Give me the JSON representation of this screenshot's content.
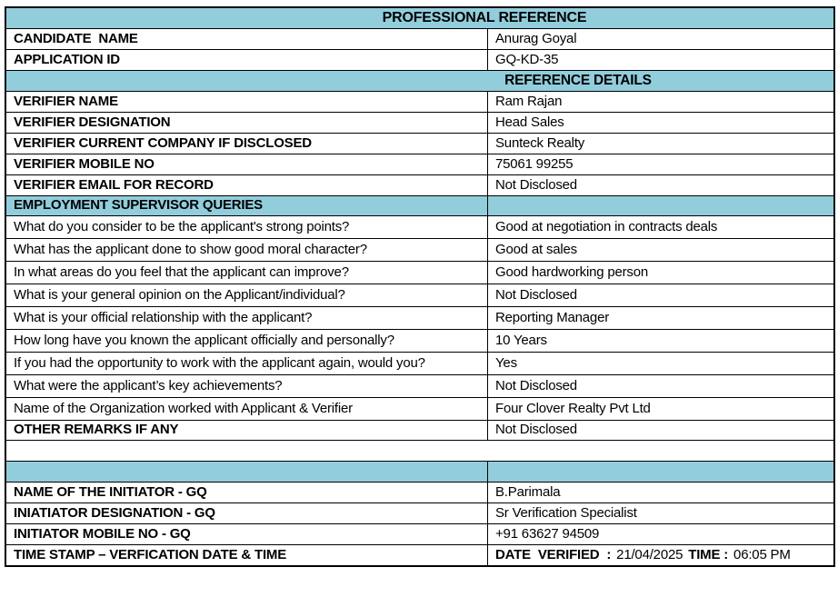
{
  "colors": {
    "section_header_bg": "#92CDDC",
    "border": "#000000",
    "text": "#000000"
  },
  "document": {
    "title": "PROFESSIONAL REFERENCE",
    "candidate_name": {
      "label": "CANDIDATE  NAME",
      "value": "Anurag Goyal"
    },
    "application_id": {
      "label": "APPLICATION ID",
      "value": "GQ-KD-35"
    },
    "reference_details_header": "REFERENCE DETAILS",
    "verifier_rows": [
      {
        "label": "VERIFIER NAME",
        "value": "Ram Rajan"
      },
      {
        "label": "VERIFIER DESIGNATION",
        "value": "Head Sales"
      },
      {
        "label": "VERIFIER CURRENT COMPANY IF DISCLOSED",
        "value": "Sunteck Realty"
      },
      {
        "label": "VERIFIER MOBILE NO",
        "value": "75061 99255"
      },
      {
        "label": "VERIFIER EMAIL FOR RECORD",
        "value": "Not Disclosed"
      }
    ],
    "queries_header": "EMPLOYMENT SUPERVISOR QUERIES",
    "query_rows": [
      {
        "question": "What do you consider to be the applicant's strong points?",
        "answer": "Good at negotiation in contracts deals"
      },
      {
        "question": "What has the applicant done to show good moral character?",
        "answer": "Good at sales"
      },
      {
        "question": "In what areas do you feel that the applicant can improve?",
        "answer": "Good hardworking person"
      },
      {
        "question": "What is your general opinion on the Applicant/individual?",
        "answer": "Not Disclosed"
      },
      {
        "question": "What is your official relationship with the applicant?",
        "answer": "Reporting Manager"
      },
      {
        "question": "How long have you known the applicant officially and personally?",
        "answer": "10 Years"
      },
      {
        "question": "If you had the opportunity to work with the applicant again, would you?",
        "answer": "Yes"
      },
      {
        "question": "What were the applicant’s key achievements?",
        "answer": "Not Disclosed"
      },
      {
        "question": "Name of the Organization worked with Applicant & Verifier",
        "answer": "Four Clover Realty Pvt Ltd"
      }
    ],
    "other_remarks": {
      "label": "OTHER REMARKS IF ANY",
      "value": "Not Disclosed"
    },
    "initiator_rows": [
      {
        "label": "NAME OF THE INITIATOR - GQ",
        "value": "B.Parimala"
      },
      {
        "label": "INIATIATOR DESIGNATION - GQ",
        "value": "Sr Verification Specialist"
      },
      {
        "label": "INITIATOR MOBILE NO - GQ",
        "value": "+91 63627 94509"
      }
    ],
    "timestamp": {
      "label": "TIME STAMP – VERFICATION DATE & TIME",
      "date_label": "DATE  VERIFIED  :",
      "date_value": "21/04/2025",
      "time_label": "TIME :",
      "time_value": "06:05 PM"
    }
  }
}
